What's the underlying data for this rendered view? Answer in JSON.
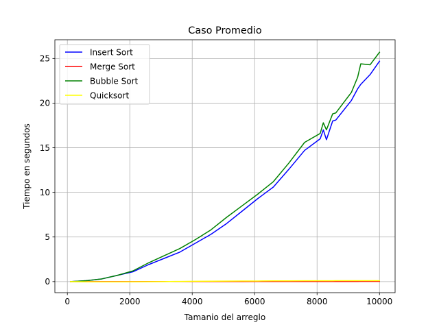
{
  "chart_data": {
    "type": "line",
    "title": "Caso Promedio",
    "xlabel": "Tamanio del arreglo",
    "ylabel": "Tiempo en segundos",
    "xlim": [
      -400,
      10500
    ],
    "ylim": [
      -1.24,
      27.1
    ],
    "xticks": [
      0,
      2000,
      4000,
      6000,
      8000,
      10000
    ],
    "yticks": [
      0,
      5,
      10,
      15,
      20,
      25
    ],
    "grid": true,
    "legend_position": "top-left",
    "x": [
      100,
      600,
      1100,
      1600,
      2100,
      2600,
      3100,
      3600,
      4100,
      4600,
      5100,
      5600,
      6100,
      6600,
      7100,
      7600,
      8100,
      8200,
      8300,
      8500,
      8600,
      9100,
      9300,
      9400,
      9700,
      10000
    ],
    "series": [
      {
        "name": "Insert Sort",
        "color": "#0000ff",
        "values": [
          0.0,
          0.1,
          0.3,
          0.7,
          1.1,
          1.9,
          2.6,
          3.3,
          4.3,
          5.3,
          6.5,
          7.9,
          9.3,
          10.6,
          12.6,
          14.7,
          16.0,
          17.0,
          15.9,
          18.0,
          18.1,
          20.3,
          21.6,
          22.1,
          23.2,
          24.7
        ]
      },
      {
        "name": "Merge Sort",
        "color": "#ff0000",
        "values": [
          0.0,
          0.0,
          0.0,
          0.0,
          0.0,
          0.01,
          0.01,
          0.01,
          0.01,
          0.01,
          0.01,
          0.01,
          0.02,
          0.02,
          0.02,
          0.02,
          0.02,
          0.02,
          0.02,
          0.02,
          0.02,
          0.02,
          0.02,
          0.03,
          0.03,
          0.03
        ]
      },
      {
        "name": "Bubble Sort",
        "color": "#008000",
        "values": [
          0.0,
          0.1,
          0.3,
          0.7,
          1.2,
          2.1,
          2.9,
          3.7,
          4.7,
          5.8,
          7.2,
          8.5,
          9.8,
          11.2,
          13.3,
          15.6,
          16.6,
          17.8,
          17.0,
          18.8,
          18.9,
          21.2,
          22.9,
          24.4,
          24.3,
          25.7
        ]
      },
      {
        "name": "Quicksort",
        "color": "#ffff00",
        "values": [
          0.0,
          -0.02,
          -0.03,
          -0.03,
          -0.02,
          -0.01,
          0.0,
          0.02,
          0.04,
          0.05,
          0.06,
          0.07,
          0.07,
          0.08,
          0.08,
          0.09,
          0.09,
          0.09,
          0.09,
          0.09,
          0.1,
          0.1,
          0.1,
          0.1,
          0.1,
          0.1
        ]
      }
    ]
  }
}
